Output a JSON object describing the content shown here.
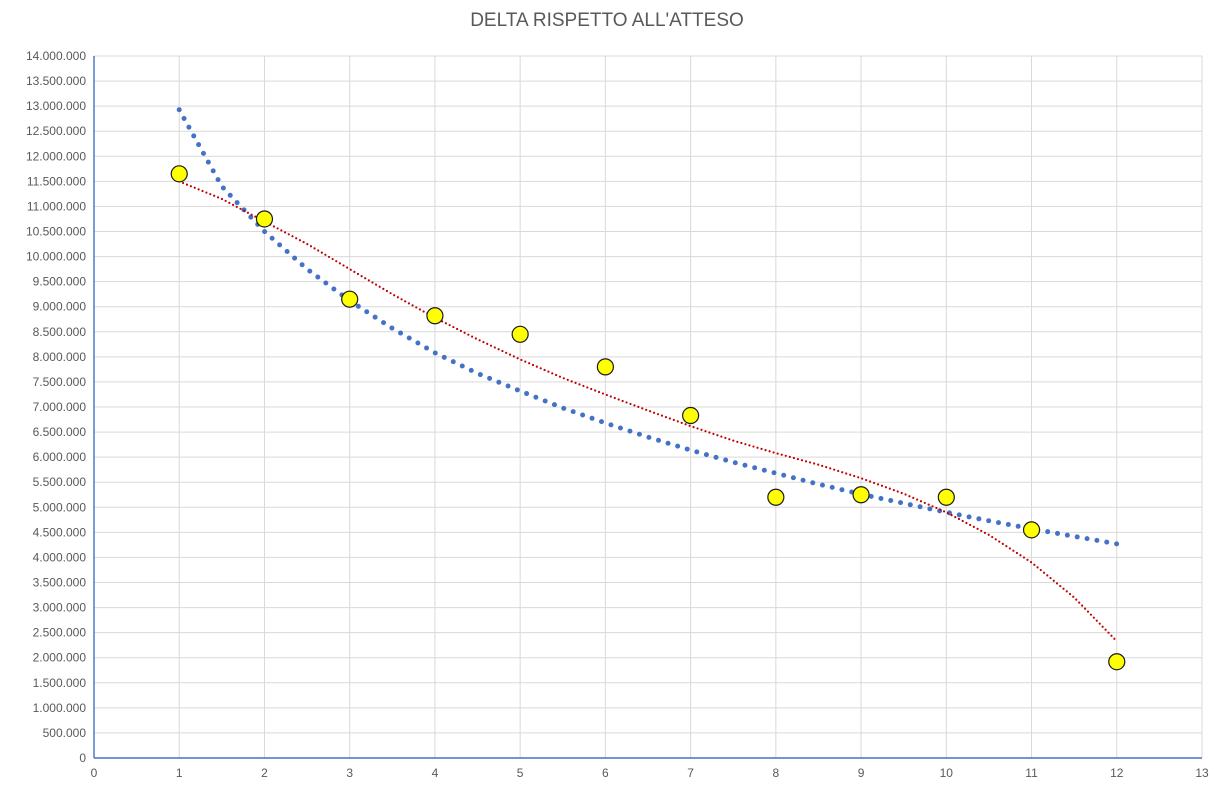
{
  "chart_data": {
    "type": "scatter",
    "title": "DELTA RISPETTO ALL'ATTESO",
    "xlim": [
      0,
      13
    ],
    "ylim": [
      0,
      14000000
    ],
    "x_ticks": [
      "0",
      "1",
      "2",
      "3",
      "4",
      "5",
      "6",
      "7",
      "8",
      "9",
      "10",
      "11",
      "12",
      "13"
    ],
    "y_ticks": [
      "0",
      "500.000",
      "1.000.000",
      "1.500.000",
      "2.000.000",
      "2.500.000",
      "3.000.000",
      "3.500.000",
      "4.000.000",
      "4.500.000",
      "5.000.000",
      "5.500.000",
      "6.000.000",
      "6.500.000",
      "7.000.000",
      "7.500.000",
      "8.000.000",
      "8.500.000",
      "9.000.000",
      "9.500.000",
      "10.000.000",
      "10.500.000",
      "11.000.000",
      "11.500.000",
      "12.000.000",
      "12.500.000",
      "13.000.000",
      "13.500.000",
      "14.000.000"
    ],
    "grid": true,
    "legend": "none",
    "series": [
      {
        "x": [
          1,
          2,
          3,
          4,
          5,
          6,
          7,
          8,
          9,
          10,
          11,
          12
        ],
        "values": [
          11650000,
          10750000,
          9150000,
          8820000,
          8450000,
          7800000,
          6830000,
          5200000,
          5250000,
          5200000,
          4550000,
          1920000
        ],
        "color": "#ffff00",
        "edge_color": "#1a1a1a"
      }
    ],
    "trendlines": [
      {
        "kind": "power",
        "color": "#4472c4",
        "x": [
          1,
          1.5,
          2,
          2.5,
          3,
          3.5,
          4,
          4.5,
          5,
          5.5,
          6,
          6.5,
          7,
          7.5,
          8,
          8.5,
          9,
          9.5,
          10,
          10.5,
          11,
          11.5,
          12
        ],
        "values": [
          12930000,
          11400000,
          10500000,
          9750000,
          9120000,
          8570000,
          8080000,
          7670000,
          7320000,
          6980000,
          6680000,
          6400000,
          6140000,
          5900000,
          5680000,
          5460000,
          5260000,
          5080000,
          4900000,
          4730000,
          4570000,
          4420000,
          4270000
        ]
      },
      {
        "kind": "polynomial",
        "color": "#c00000",
        "x": [
          1,
          1.5,
          2,
          2.5,
          3,
          3.5,
          4,
          4.5,
          5,
          5.5,
          6,
          6.5,
          7,
          7.5,
          8,
          8.5,
          9,
          9.5,
          10,
          10.5,
          11,
          11.5,
          12
        ],
        "values": [
          11500000,
          11150000,
          10700000,
          10250000,
          9750000,
          9250000,
          8780000,
          8350000,
          7950000,
          7580000,
          7250000,
          6930000,
          6620000,
          6330000,
          6080000,
          5850000,
          5580000,
          5270000,
          4900000,
          4450000,
          3900000,
          3200000,
          2330000
        ]
      }
    ]
  }
}
